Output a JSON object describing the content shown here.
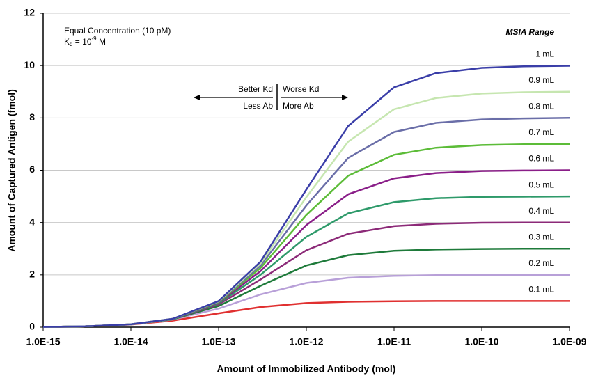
{
  "chart_data": {
    "type": "line",
    "annotation_concentration": "Equal Concentration (10 pM)",
    "annotation_kd": [
      "K",
      "d",
      " = 10",
      "-9",
      " M"
    ],
    "legend_title": "MSIA Range",
    "arrow_left_top": "Better Kd",
    "arrow_left_bottom": "Less Ab",
    "arrow_right_top": "Worse Kd",
    "arrow_right_bottom": "More Ab",
    "x_label": "Amount of Immobilized Antibody (mol)",
    "y_label": "Amount of Captured Antigen (fmol)",
    "x_log": true,
    "grid": true,
    "xlim": [
      1e-15,
      1e-09
    ],
    "xticks": [
      {
        "value": 1e-15,
        "label": "1.0E-15"
      },
      {
        "value": 1e-14,
        "label": "1.0E-14"
      },
      {
        "value": 1e-13,
        "label": "1.0E-13"
      },
      {
        "value": 1e-12,
        "label": "1.0E-12"
      },
      {
        "value": 1e-11,
        "label": "1.0E-11"
      },
      {
        "value": 1e-10,
        "label": "1.0E-10"
      },
      {
        "value": 1e-09,
        "label": "1.0E-09"
      }
    ],
    "ylim": [
      0,
      12
    ],
    "yticks": [
      0,
      2,
      4,
      6,
      8,
      10,
      12
    ],
    "x": [
      1e-15,
      3e-15,
      1e-14,
      3e-14,
      1e-13,
      3e-13,
      1e-12,
      3e-12,
      1e-11,
      3e-11,
      1e-10,
      3e-10,
      1e-09
    ],
    "series": [
      {
        "name": "1 mL",
        "color": "#3a3ea8",
        "values": [
          0.011,
          0.033,
          0.11,
          0.32,
          1.0,
          2.5,
          5.26,
          7.69,
          9.17,
          9.71,
          9.91,
          9.97,
          9.99
        ]
      },
      {
        "name": "0.9 mL",
        "color": "#c6e6b0",
        "values": [
          0.011,
          0.033,
          0.11,
          0.32,
          0.99,
          2.43,
          4.97,
          7.09,
          8.33,
          8.76,
          8.93,
          8.98,
          9.0
        ]
      },
      {
        "name": "0.8 mL",
        "color": "#6a6ea8",
        "values": [
          0.011,
          0.033,
          0.11,
          0.32,
          0.98,
          2.35,
          4.65,
          6.47,
          7.46,
          7.81,
          7.94,
          7.98,
          8.0
        ]
      },
      {
        "name": "0.7 mL",
        "color": "#5cbc38",
        "values": [
          0.011,
          0.033,
          0.11,
          0.32,
          0.96,
          2.26,
          4.29,
          5.79,
          6.59,
          6.86,
          6.96,
          6.99,
          7.0
        ]
      },
      {
        "name": "0.6 mL",
        "color": "#8a1e88",
        "values": [
          0.011,
          0.033,
          0.109,
          0.32,
          0.94,
          2.14,
          3.9,
          5.08,
          5.69,
          5.89,
          5.97,
          5.99,
          6.0
        ]
      },
      {
        "name": "0.5 mL",
        "color": "#2e9a6a",
        "values": [
          0.011,
          0.033,
          0.109,
          0.31,
          0.91,
          2.0,
          3.45,
          4.35,
          4.78,
          4.93,
          4.98,
          4.99,
          5.0
        ]
      },
      {
        "name": "0.4 mL",
        "color": "#8c2a78",
        "values": [
          0.011,
          0.033,
          0.108,
          0.31,
          0.87,
          1.82,
          2.94,
          3.57,
          3.86,
          3.95,
          3.99,
          4.0,
          4.0
        ]
      },
      {
        "name": "0.3 mL",
        "color": "#1e7a3a",
        "values": [
          0.011,
          0.033,
          0.107,
          0.3,
          0.81,
          1.58,
          2.36,
          2.75,
          2.92,
          2.97,
          2.99,
          3.0,
          3.0
        ]
      },
      {
        "name": "0.2 mL",
        "color": "#b8a0d8",
        "values": [
          0.011,
          0.033,
          0.105,
          0.29,
          0.71,
          1.25,
          1.69,
          1.89,
          1.96,
          1.99,
          2.0,
          2.0,
          2.0
        ]
      },
      {
        "name": "0.1 mL",
        "color": "#e03030",
        "values": [
          0.011,
          0.032,
          0.1,
          0.25,
          0.53,
          0.77,
          0.92,
          0.97,
          0.99,
          1.0,
          1.0,
          1.0,
          1.0
        ]
      }
    ]
  }
}
